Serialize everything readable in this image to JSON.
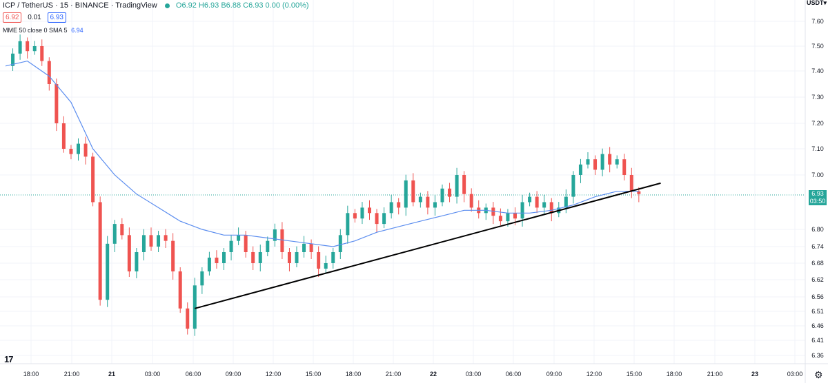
{
  "header": {
    "symbol": "ICP / TetherUS · 15 · BINANCE · TradingView",
    "ohlc": "O6.92 H6.93 B6.88 C6.93 0.00 (0.00%)",
    "bid": "6.92",
    "spread": "0.01",
    "ask": "6.93"
  },
  "indicator": {
    "label": "MME 50 close 0 SMA 5",
    "value": "6.94"
  },
  "currency": "USDT▾",
  "current_price": {
    "price": "6.93",
    "countdown": "03:50"
  },
  "logo_text": "17",
  "settings_icon": "gear-icon",
  "colors": {
    "up": "#26a69a",
    "down": "#ef5350",
    "ma": "#5b8def",
    "trendline": "#000000"
  },
  "chart_data": {
    "type": "candlestick",
    "timeframe": "15",
    "x_ticks": [
      "18:00",
      "21:00",
      "21",
      "03:00",
      "06:00",
      "09:00",
      "12:00",
      "15:00",
      "18:00",
      "21:00",
      "22",
      "03:00",
      "06:00",
      "09:00",
      "12:00",
      "15:00",
      "18:00",
      "21:00",
      "23",
      "03:00"
    ],
    "y_ticks": [
      "7.60",
      "7.50",
      "7.40",
      "7.30",
      "7.20",
      "7.10",
      "7.00",
      "6.80",
      "6.74",
      "6.68",
      "6.62",
      "6.56",
      "6.51",
      "6.46",
      "6.41",
      "6.36"
    ],
    "y_tick_values": [
      7.6,
      7.5,
      7.4,
      7.3,
      7.2,
      7.1,
      7.0,
      6.8,
      6.74,
      6.68,
      6.62,
      6.56,
      6.51,
      6.46,
      6.41,
      6.36
    ],
    "current_price_line": 6.93,
    "close_path": [
      [
        0,
        7.42
      ],
      [
        1,
        7.47
      ],
      [
        2,
        7.52
      ],
      [
        3,
        7.48
      ],
      [
        4,
        7.5
      ],
      [
        5,
        7.44
      ],
      [
        6,
        7.35
      ],
      [
        7,
        7.2
      ],
      [
        8,
        7.1
      ],
      [
        9,
        7.08
      ],
      [
        10,
        7.12
      ],
      [
        11,
        7.07
      ],
      [
        12,
        6.9
      ],
      [
        13,
        6.55
      ],
      [
        14,
        6.75
      ],
      [
        15,
        6.82
      ],
      [
        16,
        6.78
      ],
      [
        17,
        6.65
      ],
      [
        18,
        6.72
      ],
      [
        19,
        6.78
      ],
      [
        20,
        6.74
      ],
      [
        21,
        6.78
      ],
      [
        22,
        6.76
      ],
      [
        23,
        6.65
      ],
      [
        24,
        6.52
      ],
      [
        25,
        6.45
      ],
      [
        26,
        6.6
      ],
      [
        27,
        6.65
      ],
      [
        28,
        6.7
      ],
      [
        29,
        6.68
      ],
      [
        30,
        6.72
      ],
      [
        31,
        6.76
      ],
      [
        32,
        6.78
      ],
      [
        33,
        6.72
      ],
      [
        34,
        6.68
      ],
      [
        35,
        6.72
      ],
      [
        36,
        6.76
      ],
      [
        37,
        6.8
      ],
      [
        38,
        6.72
      ],
      [
        39,
        6.68
      ],
      [
        40,
        6.72
      ],
      [
        41,
        6.75
      ],
      [
        42,
        6.72
      ],
      [
        43,
        6.66
      ],
      [
        44,
        6.68
      ],
      [
        45,
        6.72
      ],
      [
        46,
        6.78
      ],
      [
        47,
        6.86
      ],
      [
        48,
        6.84
      ],
      [
        49,
        6.88
      ],
      [
        50,
        6.86
      ],
      [
        51,
        6.82
      ],
      [
        52,
        6.86
      ],
      [
        53,
        6.9
      ],
      [
        54,
        6.88
      ],
      [
        55,
        6.98
      ],
      [
        56,
        6.9
      ],
      [
        57,
        6.92
      ],
      [
        58,
        6.88
      ],
      [
        59,
        6.9
      ],
      [
        60,
        6.95
      ],
      [
        61,
        6.92
      ],
      [
        62,
        7.0
      ],
      [
        63,
        6.93
      ],
      [
        64,
        6.88
      ],
      [
        65,
        6.86
      ],
      [
        66,
        6.88
      ],
      [
        67,
        6.85
      ],
      [
        68,
        6.83
      ],
      [
        69,
        6.86
      ],
      [
        70,
        6.84
      ],
      [
        71,
        6.9
      ],
      [
        72,
        6.92
      ],
      [
        73,
        6.88
      ],
      [
        74,
        6.9
      ],
      [
        75,
        6.86
      ],
      [
        76,
        6.88
      ],
      [
        77,
        6.92
      ],
      [
        78,
        7.0
      ],
      [
        79,
        7.04
      ],
      [
        80,
        7.06
      ],
      [
        81,
        7.02
      ],
      [
        82,
        7.08
      ],
      [
        83,
        7.04
      ],
      [
        84,
        7.06
      ],
      [
        85,
        7.0
      ],
      [
        86,
        6.94
      ],
      [
        87,
        6.93
      ]
    ],
    "ma_path": [
      [
        0,
        7.42
      ],
      [
        3,
        7.44
      ],
      [
        6,
        7.38
      ],
      [
        9,
        7.28
      ],
      [
        12,
        7.1
      ],
      [
        15,
        7.0
      ],
      [
        18,
        6.93
      ],
      [
        21,
        6.88
      ],
      [
        24,
        6.83
      ],
      [
        27,
        6.8
      ],
      [
        30,
        6.78
      ],
      [
        33,
        6.78
      ],
      [
        36,
        6.77
      ],
      [
        39,
        6.76
      ],
      [
        42,
        6.75
      ],
      [
        45,
        6.74
      ],
      [
        48,
        6.76
      ],
      [
        51,
        6.79
      ],
      [
        54,
        6.81
      ],
      [
        57,
        6.83
      ],
      [
        60,
        6.85
      ],
      [
        63,
        6.87
      ],
      [
        66,
        6.87
      ],
      [
        69,
        6.86
      ],
      [
        72,
        6.86
      ],
      [
        75,
        6.87
      ],
      [
        78,
        6.89
      ],
      [
        81,
        6.92
      ],
      [
        84,
        6.94
      ],
      [
        87,
        6.94
      ]
    ],
    "trendline": [
      [
        26,
        6.52
      ],
      [
        90,
        6.97
      ]
    ]
  }
}
